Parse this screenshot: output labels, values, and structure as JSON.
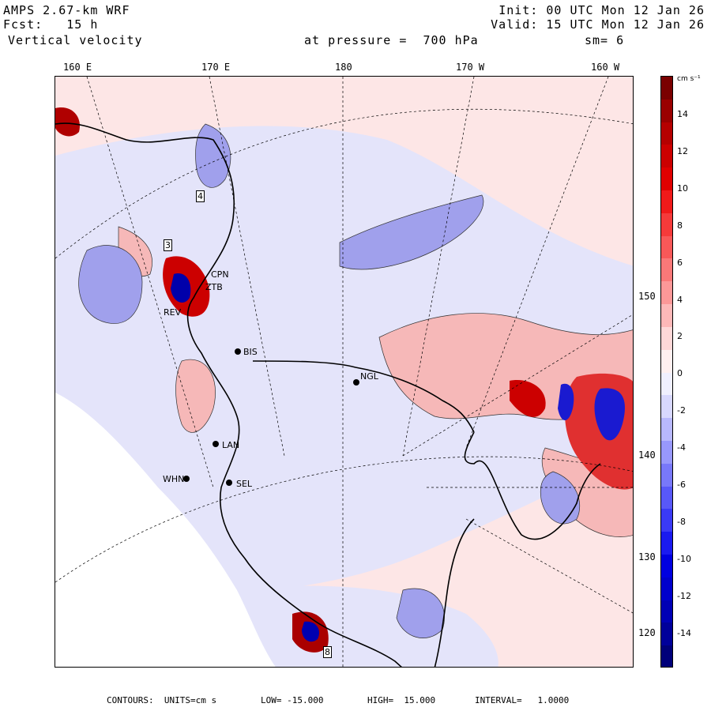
{
  "header": {
    "model": "AMPS 2.67-km WRF",
    "forecast": "Fcst:   15 h",
    "field": "Vertical velocity",
    "init": "Init: 00 UTC Mon 12 Jan 26",
    "valid": "Valid: 15 UTC Mon 12 Jan 26",
    "level": "at pressure =  700 hPa",
    "smoothing": "sm= 6"
  },
  "longitude_labels": [
    "160 E",
    "170 E",
    "180",
    "170 W",
    "160 W"
  ],
  "latitude_labels": [
    "150 W",
    "140 W",
    "130 W",
    "120 W"
  ],
  "stations": [
    {
      "label": "CPN"
    },
    {
      "label": "ZTB"
    },
    {
      "label": "REV"
    },
    {
      "label": "BIS"
    },
    {
      "label": "NGL"
    },
    {
      "label": "LAN"
    },
    {
      "label": "WHN"
    },
    {
      "label": "SEL"
    },
    {
      "label": "4"
    },
    {
      "label": "3"
    },
    {
      "label": "8"
    }
  ],
  "colorbar": {
    "units": "cm s⁻¹",
    "ticks": [
      "14",
      "12",
      "10",
      "8",
      "6",
      "4",
      "2",
      "0",
      "-2",
      "-4",
      "-6",
      "-8",
      "-10",
      "-12",
      "-14"
    ],
    "colors": [
      "#7a0000",
      "#9a0000",
      "#b50000",
      "#cc0000",
      "#e00000",
      "#f01a1a",
      "#f53a3a",
      "#f85858",
      "#fa7878",
      "#fc9898",
      "#fdb8b8",
      "#fed8d8",
      "#fff0f0",
      "#f0f0ff",
      "#d8d8fe",
      "#b8b8fd",
      "#9898fc",
      "#7878fa",
      "#5858f8",
      "#3a3af5",
      "#1a1af0",
      "#0000e0",
      "#0000cc",
      "#0000b5",
      "#00009a",
      "#00007a"
    ]
  },
  "footer": {
    "contours": "CONTOURS:  UNITS=cm s",
    "low": "LOW= -15.000",
    "high": "HIGH=  15.000",
    "interval": "INTERVAL=   1.0000"
  },
  "colors": {
    "positive": "#f6b3b3",
    "negative": "#b8b8f0",
    "background_pos": "#fde6e6",
    "background_neg": "#e6e6fb",
    "ice": "#ffffff"
  }
}
